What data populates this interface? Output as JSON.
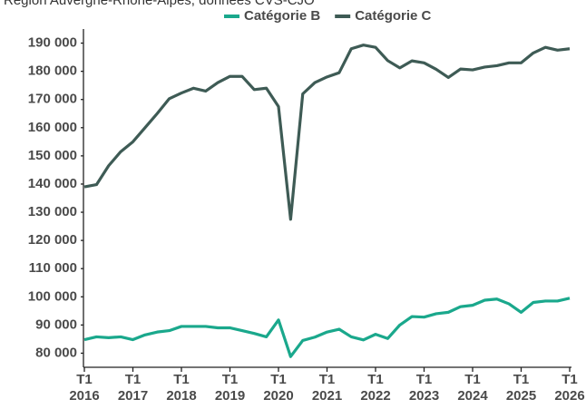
{
  "chart_data": {
    "type": "line",
    "subtitle": "Région Auvergne-Rhône-Alpes, données CVS-CJO",
    "categories": [
      "T1 2016",
      null,
      null,
      null,
      "T1 2017",
      null,
      null,
      null,
      "T1 2018",
      null,
      null,
      null,
      "T1 2019",
      null,
      null,
      null,
      "T1 2020",
      null,
      null,
      null,
      "T1 2021",
      null,
      null,
      null,
      "T1 2022",
      null,
      null,
      null,
      "T1 2023",
      null,
      null,
      null,
      "T1 2024",
      null,
      null,
      null,
      "T1 2025",
      null,
      null,
      null,
      "T1 2026"
    ],
    "series": [
      {
        "name": "Catégorie B",
        "color": "#1aa88c",
        "values": [
          84800,
          85800,
          85500,
          85800,
          84800,
          86500,
          87500,
          88000,
          89500,
          89500,
          89500,
          89000,
          89000,
          88000,
          87000,
          85800,
          91800,
          78800,
          84500,
          85700,
          87500,
          88500,
          85800,
          84700,
          86700,
          85200,
          90000,
          93000,
          92800,
          94000,
          94500,
          96500,
          97000,
          98800,
          99200,
          97500,
          94500,
          98000,
          98500,
          98500,
          99500
        ]
      },
      {
        "name": "Catégorie C",
        "color": "#3e5b55",
        "values": [
          139000,
          139800,
          146500,
          151500,
          155000,
          160000,
          165000,
          170300,
          172300,
          174000,
          173000,
          176000,
          178200,
          178200,
          173500,
          174000,
          167500,
          127500,
          172000,
          176000,
          178000,
          179500,
          188000,
          189300,
          188500,
          183800,
          181200,
          183700,
          183000,
          180700,
          177800,
          180800,
          180500,
          181500,
          182000,
          183000,
          183000,
          186500,
          188500,
          187500,
          188000
        ]
      }
    ],
    "ylim": [
      75000,
      195000
    ],
    "yticks": [
      {
        "value": 80000,
        "label": "80 000"
      },
      {
        "value": 90000,
        "label": "90 000"
      },
      {
        "value": 100000,
        "label": "100 000"
      },
      {
        "value": 110000,
        "label": "110 000"
      },
      {
        "value": 120000,
        "label": "120 000"
      },
      {
        "value": 130000,
        "label": "130 000"
      },
      {
        "value": 140000,
        "label": "140 000"
      },
      {
        "value": 150000,
        "label": "150 000"
      },
      {
        "value": 160000,
        "label": "160 000"
      },
      {
        "value": 170000,
        "label": "170 000"
      },
      {
        "value": 180000,
        "label": "180 000"
      },
      {
        "value": 190000,
        "label": "190 000"
      }
    ],
    "grid": false,
    "legend": "top"
  }
}
